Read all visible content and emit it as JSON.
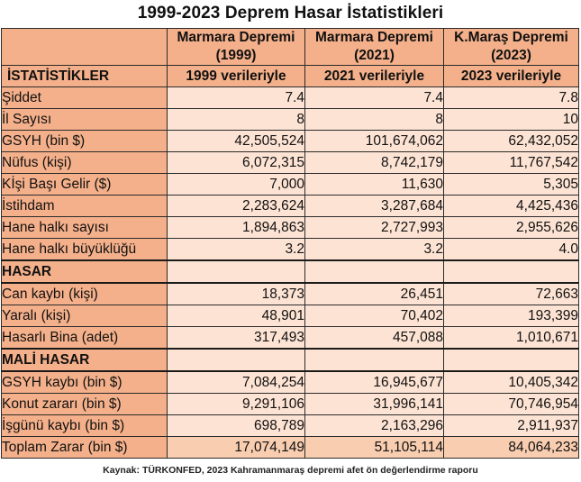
{
  "title": "1999-2023 Deprem Hasar İstatistikleri",
  "colors": {
    "header_bg": "#f4b08a",
    "label_bg": "#f4b08a",
    "value_bg": "#fde3d3",
    "total_value_bg": "#f8cdb0",
    "border": "#2b2b2b"
  },
  "table": {
    "columns": [
      {
        "line1": "Marmara Depremi",
        "line2": "(1999)",
        "basis": "1999 verileriyle"
      },
      {
        "line1": "Marmara Depremi",
        "line2": "(2021)",
        "basis": "2021 verileriyle"
      },
      {
        "line1": "K.Maraş Depremi",
        "line2": "(2023)",
        "basis": "2023 verileriyle"
      }
    ],
    "stats_heading": "İSTATİSTİKLER",
    "rows": [
      {
        "label": "Şiddet",
        "values": [
          "7.4",
          "7.4",
          "7.8"
        ]
      },
      {
        "label": "İl Sayısı",
        "values": [
          "8",
          "8",
          "10"
        ]
      },
      {
        "label": "GSYH (bin $)",
        "values": [
          "42,505,524",
          "101,674,062",
          "62,432,052"
        ]
      },
      {
        "label": "Nüfus (kişi)",
        "values": [
          "6,072,315",
          "8,742,179",
          "11,767,542"
        ]
      },
      {
        "label": "Kİşi Başı Gelir ($)",
        "values": [
          "7,000",
          "11,630",
          "5,305"
        ]
      },
      {
        "label": "İstihdam",
        "values": [
          "2,283,624",
          "3,287,684",
          "4,425,436"
        ]
      },
      {
        "label": "Hane halkı sayısı",
        "values": [
          "1,894,863",
          "2,727,993",
          "2,955,626"
        ]
      },
      {
        "label": "Hane halkı büyüklüğü",
        "values": [
          "3.2",
          "3.2",
          "4.0"
        ]
      }
    ],
    "hasar_heading": "HASAR",
    "hasar_rows": [
      {
        "label": "Can kaybı (kişi)",
        "values": [
          "18,373",
          "26,451",
          "72,663"
        ]
      },
      {
        "label": "Yaralı (kişi)",
        "values": [
          "48,901",
          "70,402",
          "193,399"
        ]
      },
      {
        "label": "Hasarlı Bina (adet)",
        "values": [
          "317,493",
          "457,088",
          "1,010,671"
        ]
      }
    ],
    "mali_heading": "MALİ HASAR",
    "mali_rows": [
      {
        "label": "GSYH kaybı (bin $)",
        "values": [
          "7,084,254",
          "16,945,677",
          "10,405,342"
        ]
      },
      {
        "label": "Konut zararı (bin $)",
        "values": [
          "9,291,106",
          "31,996,141",
          "70,746,954"
        ]
      },
      {
        "label": "İşgünü kaybı (bin $)",
        "values": [
          "698,789",
          "2,163,296",
          "2,911,937"
        ]
      },
      {
        "label": "Toplam Zarar (bin $)",
        "values": [
          "17,074,149",
          "51,105,114",
          "84,064,233"
        ]
      }
    ]
  },
  "footer": "Kaynak: TÜRKONFED, 2023 Kahramanmaraş depremi afet ön değerlendirme raporu"
}
